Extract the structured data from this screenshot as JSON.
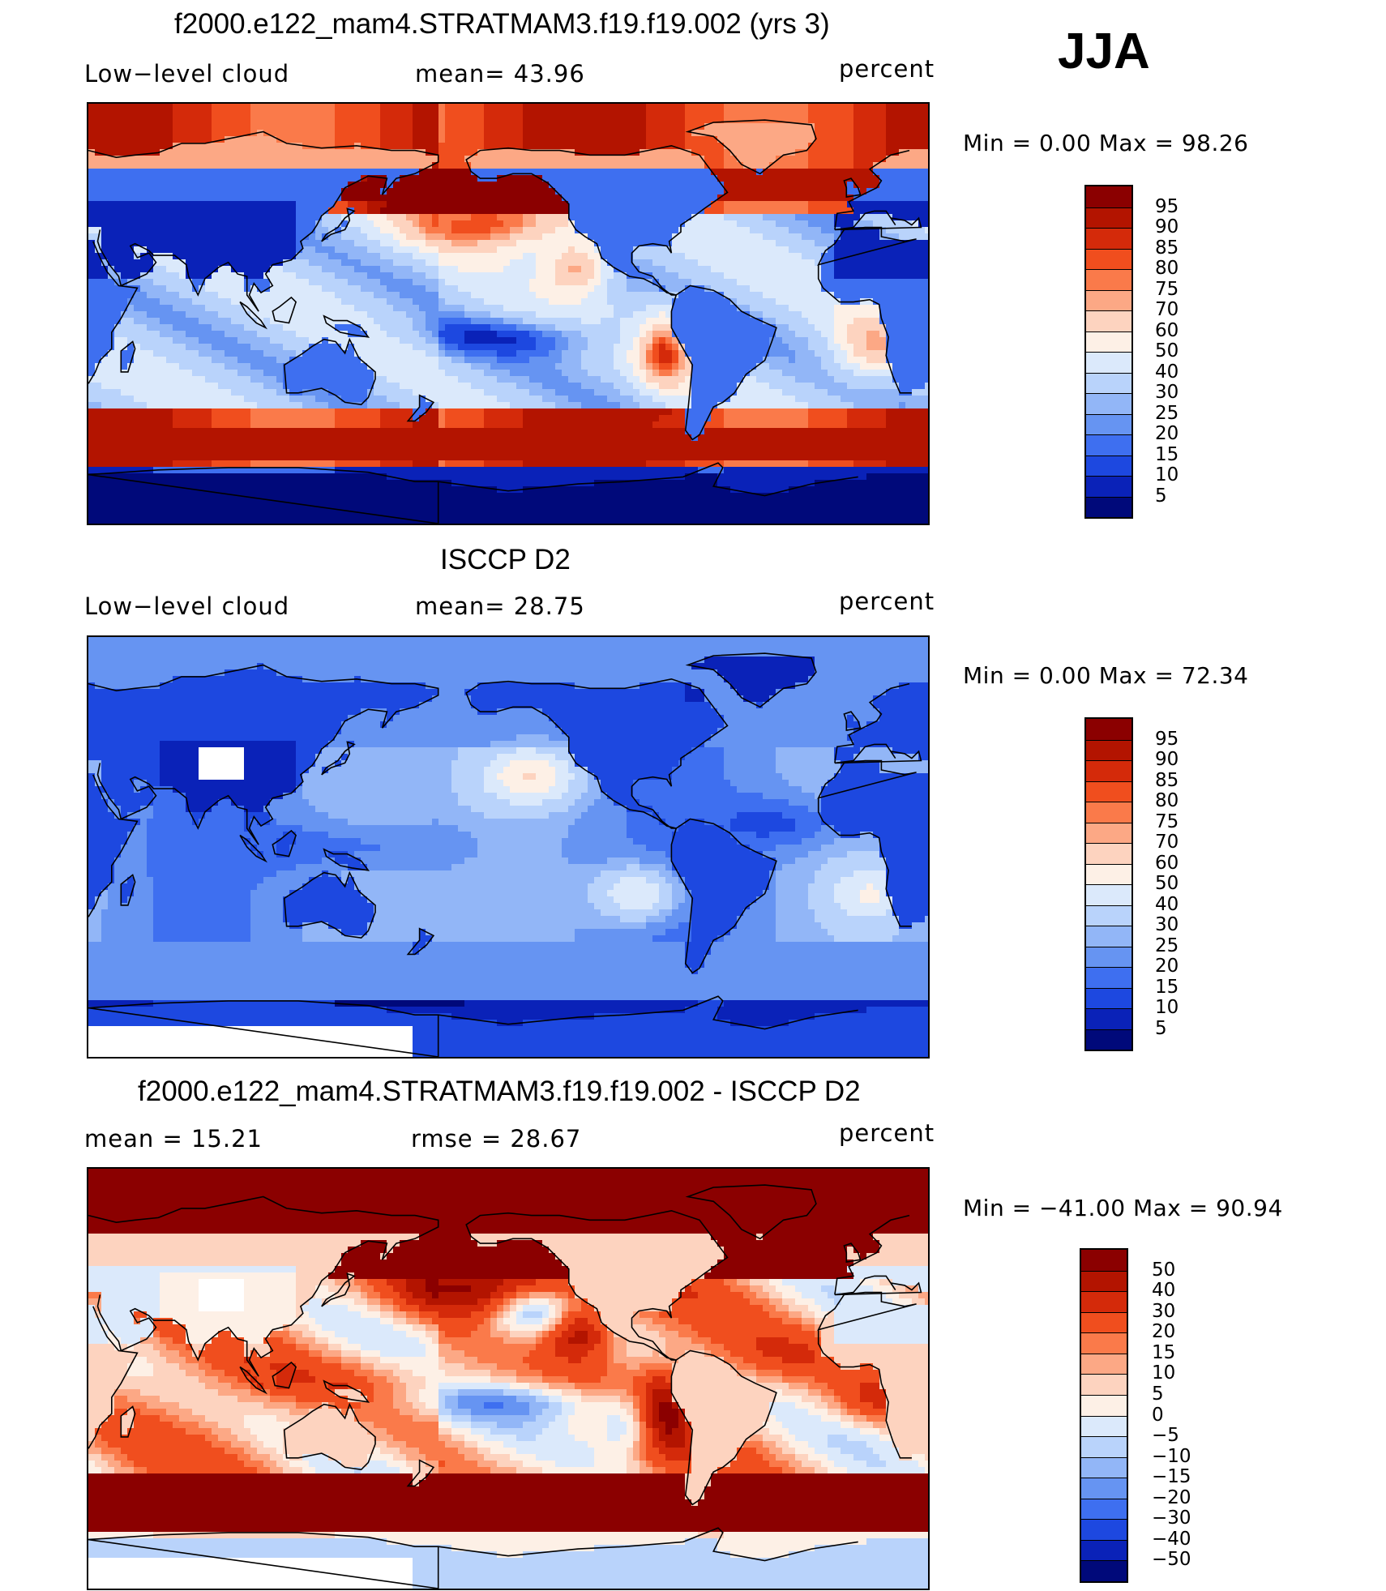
{
  "season": "JJA",
  "panels": [
    {
      "title": "f2000.e122_mam4.STRATMAM3.f19.f19.002 (yrs 3)",
      "left_label": "Low−level cloud",
      "center_label": "mean=   43.96",
      "right_label": "percent",
      "minmax": "Min  =     0.00  Max  =    98.26",
      "ticks": [
        "95",
        "90",
        "85",
        "80",
        "75",
        "70",
        "60",
        "50",
        "40",
        "30",
        "25",
        "20",
        "15",
        "10",
        "5"
      ]
    },
    {
      "title": "ISCCP D2",
      "left_label": "Low−level cloud",
      "center_label": "mean=   28.75",
      "right_label": "percent",
      "minmax": "Min  =     0.00  Max  =    72.34",
      "ticks": [
        "95",
        "90",
        "85",
        "80",
        "75",
        "70",
        "60",
        "50",
        "40",
        "30",
        "25",
        "20",
        "15",
        "10",
        "5"
      ]
    },
    {
      "title": "f2000.e122_mam4.STRATMAM3.f19.f19.002 - ISCCP D2",
      "left_label": "mean  =    15.21",
      "center_label": "rmse  =    28.67",
      "right_label": "percent",
      "minmax": "Min  = −41.00  Max  =    90.94",
      "ticks": [
        "50",
        "40",
        "30",
        "20",
        "15",
        "10",
        "5",
        "0",
        "−5",
        "−10",
        "−15",
        "−20",
        "−30",
        "−40",
        "−50"
      ]
    }
  ],
  "colors": {
    "abs_scale": [
      "#8b0000",
      "#b31400",
      "#d42a0a",
      "#f04e1e",
      "#fa7a4a",
      "#fca885",
      "#fdd3bf",
      "#fdf0e6",
      "#dbe9fb",
      "#b9d3fb",
      "#92b6f7",
      "#6694f2",
      "#3e6ff0",
      "#1d48e0",
      "#0a22b8",
      "#00097a"
    ],
    "diff_scale": [
      "#8b0000",
      "#b31400",
      "#d42a0a",
      "#f04e1e",
      "#fa7a4a",
      "#fca885",
      "#fdd3bf",
      "#fdf0e6",
      "#dbe9fb",
      "#b9d3fb",
      "#92b6f7",
      "#6694f2",
      "#3e6ff0",
      "#1d48e0",
      "#0a22b8",
      "#00097a"
    ],
    "missing": "#ffffff"
  }
}
